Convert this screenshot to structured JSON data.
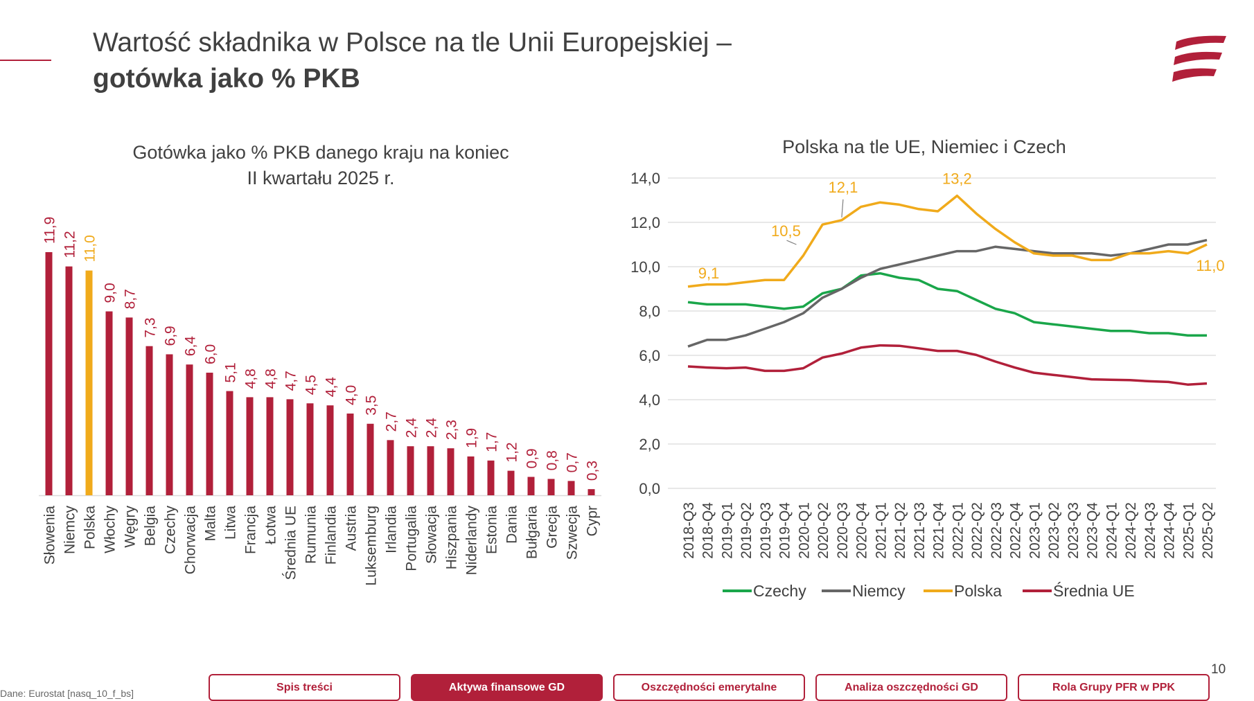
{
  "header": {
    "title_line1": "Wartość składnika w Polsce na tle Unii Europejskiej –",
    "title_line2": "gotówka jako % PKB"
  },
  "colors": {
    "brand": "#b1203a",
    "highlight": "#f0aa1b",
    "czechy": "#1aa64a",
    "niemcy": "#666666",
    "polska": "#f0aa1b",
    "srednia_ue": "#b1203a"
  },
  "chart_data": [
    {
      "type": "bar",
      "title": "Gotówka jako % PKB danego kraju na koniec II kwartału 2025 r.",
      "title_lines": [
        "Gotówka jako % PKB danego kraju na koniec",
        "II kwartału 2025 r."
      ],
      "categories": [
        "Słowenia",
        "Niemcy",
        "Polska",
        "Włochy",
        "Węgry",
        "Belgia",
        "Czechy",
        "Chorwacja",
        "Malta",
        "Litwa",
        "Francja",
        "Łotwa",
        "Średnia UE",
        "Rumunia",
        "Finlandia",
        "Austria",
        "Luksemburg",
        "Irlandia",
        "Portugalia",
        "Słowacja",
        "Hiszpania",
        "Niderlandy",
        "Estonia",
        "Dania",
        "Bułgaria",
        "Grecja",
        "Szwecja",
        "Cypr"
      ],
      "values": [
        11.9,
        11.2,
        11.0,
        9.0,
        8.7,
        7.3,
        6.9,
        6.4,
        6.0,
        5.1,
        4.8,
        4.8,
        4.7,
        4.5,
        4.4,
        4.0,
        3.5,
        2.7,
        2.4,
        2.4,
        2.3,
        1.9,
        1.7,
        1.2,
        0.9,
        0.8,
        0.7,
        0.3
      ],
      "labels": [
        "11,9",
        "11,2",
        "11,0",
        "9,0",
        "8,7",
        "7,3",
        "6,9",
        "6,4",
        "6,0",
        "5,1",
        "4,8",
        "4,8",
        "4,7",
        "4,5",
        "4,4",
        "4,0",
        "3,5",
        "2,7",
        "2,4",
        "2,4",
        "2,3",
        "1,9",
        "1,7",
        "1,2",
        "0,9",
        "0,8",
        "0,7",
        "0,3"
      ],
      "highlight": "Polska",
      "ylim": [
        0,
        12
      ]
    },
    {
      "type": "line",
      "title": "Polska na tle UE, Niemiec i Czech",
      "x": [
        "2018-Q3",
        "2018-Q4",
        "2019-Q1",
        "2019-Q2",
        "2019-Q3",
        "2019-Q4",
        "2020-Q1",
        "2020-Q2",
        "2020-Q3",
        "2020-Q4",
        "2021-Q1",
        "2021-Q2",
        "2021-Q3",
        "2021-Q4",
        "2022-Q1",
        "2022-Q2",
        "2022-Q3",
        "2022-Q4",
        "2023-Q1",
        "2023-Q2",
        "2023-Q3",
        "2023-Q4",
        "2024-Q1",
        "2024-Q2",
        "2024-Q3",
        "2024-Q4",
        "2025-Q1",
        "2025-Q2"
      ],
      "ylim": [
        0,
        14
      ],
      "yticks": [
        "0,0",
        "2,0",
        "4,0",
        "6,0",
        "8,0",
        "10,0",
        "12,0",
        "14,0"
      ],
      "grid": true,
      "legend_position": "bottom",
      "series": [
        {
          "name": "Czechy",
          "values": [
            8.4,
            8.3,
            8.3,
            8.3,
            8.2,
            8.1,
            8.2,
            8.8,
            9.0,
            9.6,
            9.7,
            9.5,
            9.4,
            9.0,
            8.9,
            8.5,
            8.1,
            7.9,
            7.5,
            7.4,
            7.3,
            7.2,
            7.1,
            7.1,
            7.0,
            7.0,
            6.9,
            6.9
          ]
        },
        {
          "name": "Niemcy",
          "values": [
            6.4,
            6.7,
            6.7,
            6.9,
            7.2,
            7.5,
            7.9,
            8.6,
            9.0,
            9.5,
            9.9,
            10.1,
            10.3,
            10.5,
            10.7,
            10.7,
            10.9,
            10.8,
            10.7,
            10.6,
            10.6,
            10.6,
            10.5,
            10.6,
            10.8,
            11.0,
            11.0,
            11.2
          ]
        },
        {
          "name": "Polska",
          "values": [
            9.1,
            9.2,
            9.2,
            9.3,
            9.4,
            9.4,
            10.5,
            11.9,
            12.1,
            12.7,
            12.9,
            12.8,
            12.6,
            12.5,
            13.2,
            12.4,
            11.7,
            11.1,
            10.6,
            10.5,
            10.5,
            10.3,
            10.3,
            10.6,
            10.6,
            10.7,
            10.6,
            11.0
          ]
        },
        {
          "name": "Średnia UE",
          "values": [
            5.5,
            5.45,
            5.42,
            5.45,
            5.3,
            5.3,
            5.42,
            5.9,
            6.08,
            6.35,
            6.45,
            6.43,
            6.32,
            6.2,
            6.2,
            6.02,
            5.72,
            5.45,
            5.22,
            5.12,
            5.02,
            4.92,
            4.9,
            4.88,
            4.83,
            4.8,
            4.68,
            4.73
          ]
        }
      ],
      "annotations": [
        {
          "series": "Polska",
          "index": 0,
          "text": "9,1"
        },
        {
          "series": "Polska",
          "index": 6,
          "text": "10,5"
        },
        {
          "series": "Polska",
          "index": 8,
          "text": "12,1"
        },
        {
          "series": "Polska",
          "index": 14,
          "text": "13,2"
        },
        {
          "series": "Polska",
          "index": 27,
          "text": "11,0"
        }
      ]
    }
  ],
  "footer": {
    "source": "Dane: Eurostat [nasq_10_f_bs]",
    "page_number": "10",
    "nav": [
      {
        "label": "Spis treści",
        "active": false
      },
      {
        "label": "Aktywa finansowe GD",
        "active": true
      },
      {
        "label": "Oszczędności emerytalne",
        "active": false
      },
      {
        "label": "Analiza oszczędności GD",
        "active": false
      },
      {
        "label": "Rola Grupy PFR w PPK",
        "active": false
      }
    ]
  }
}
